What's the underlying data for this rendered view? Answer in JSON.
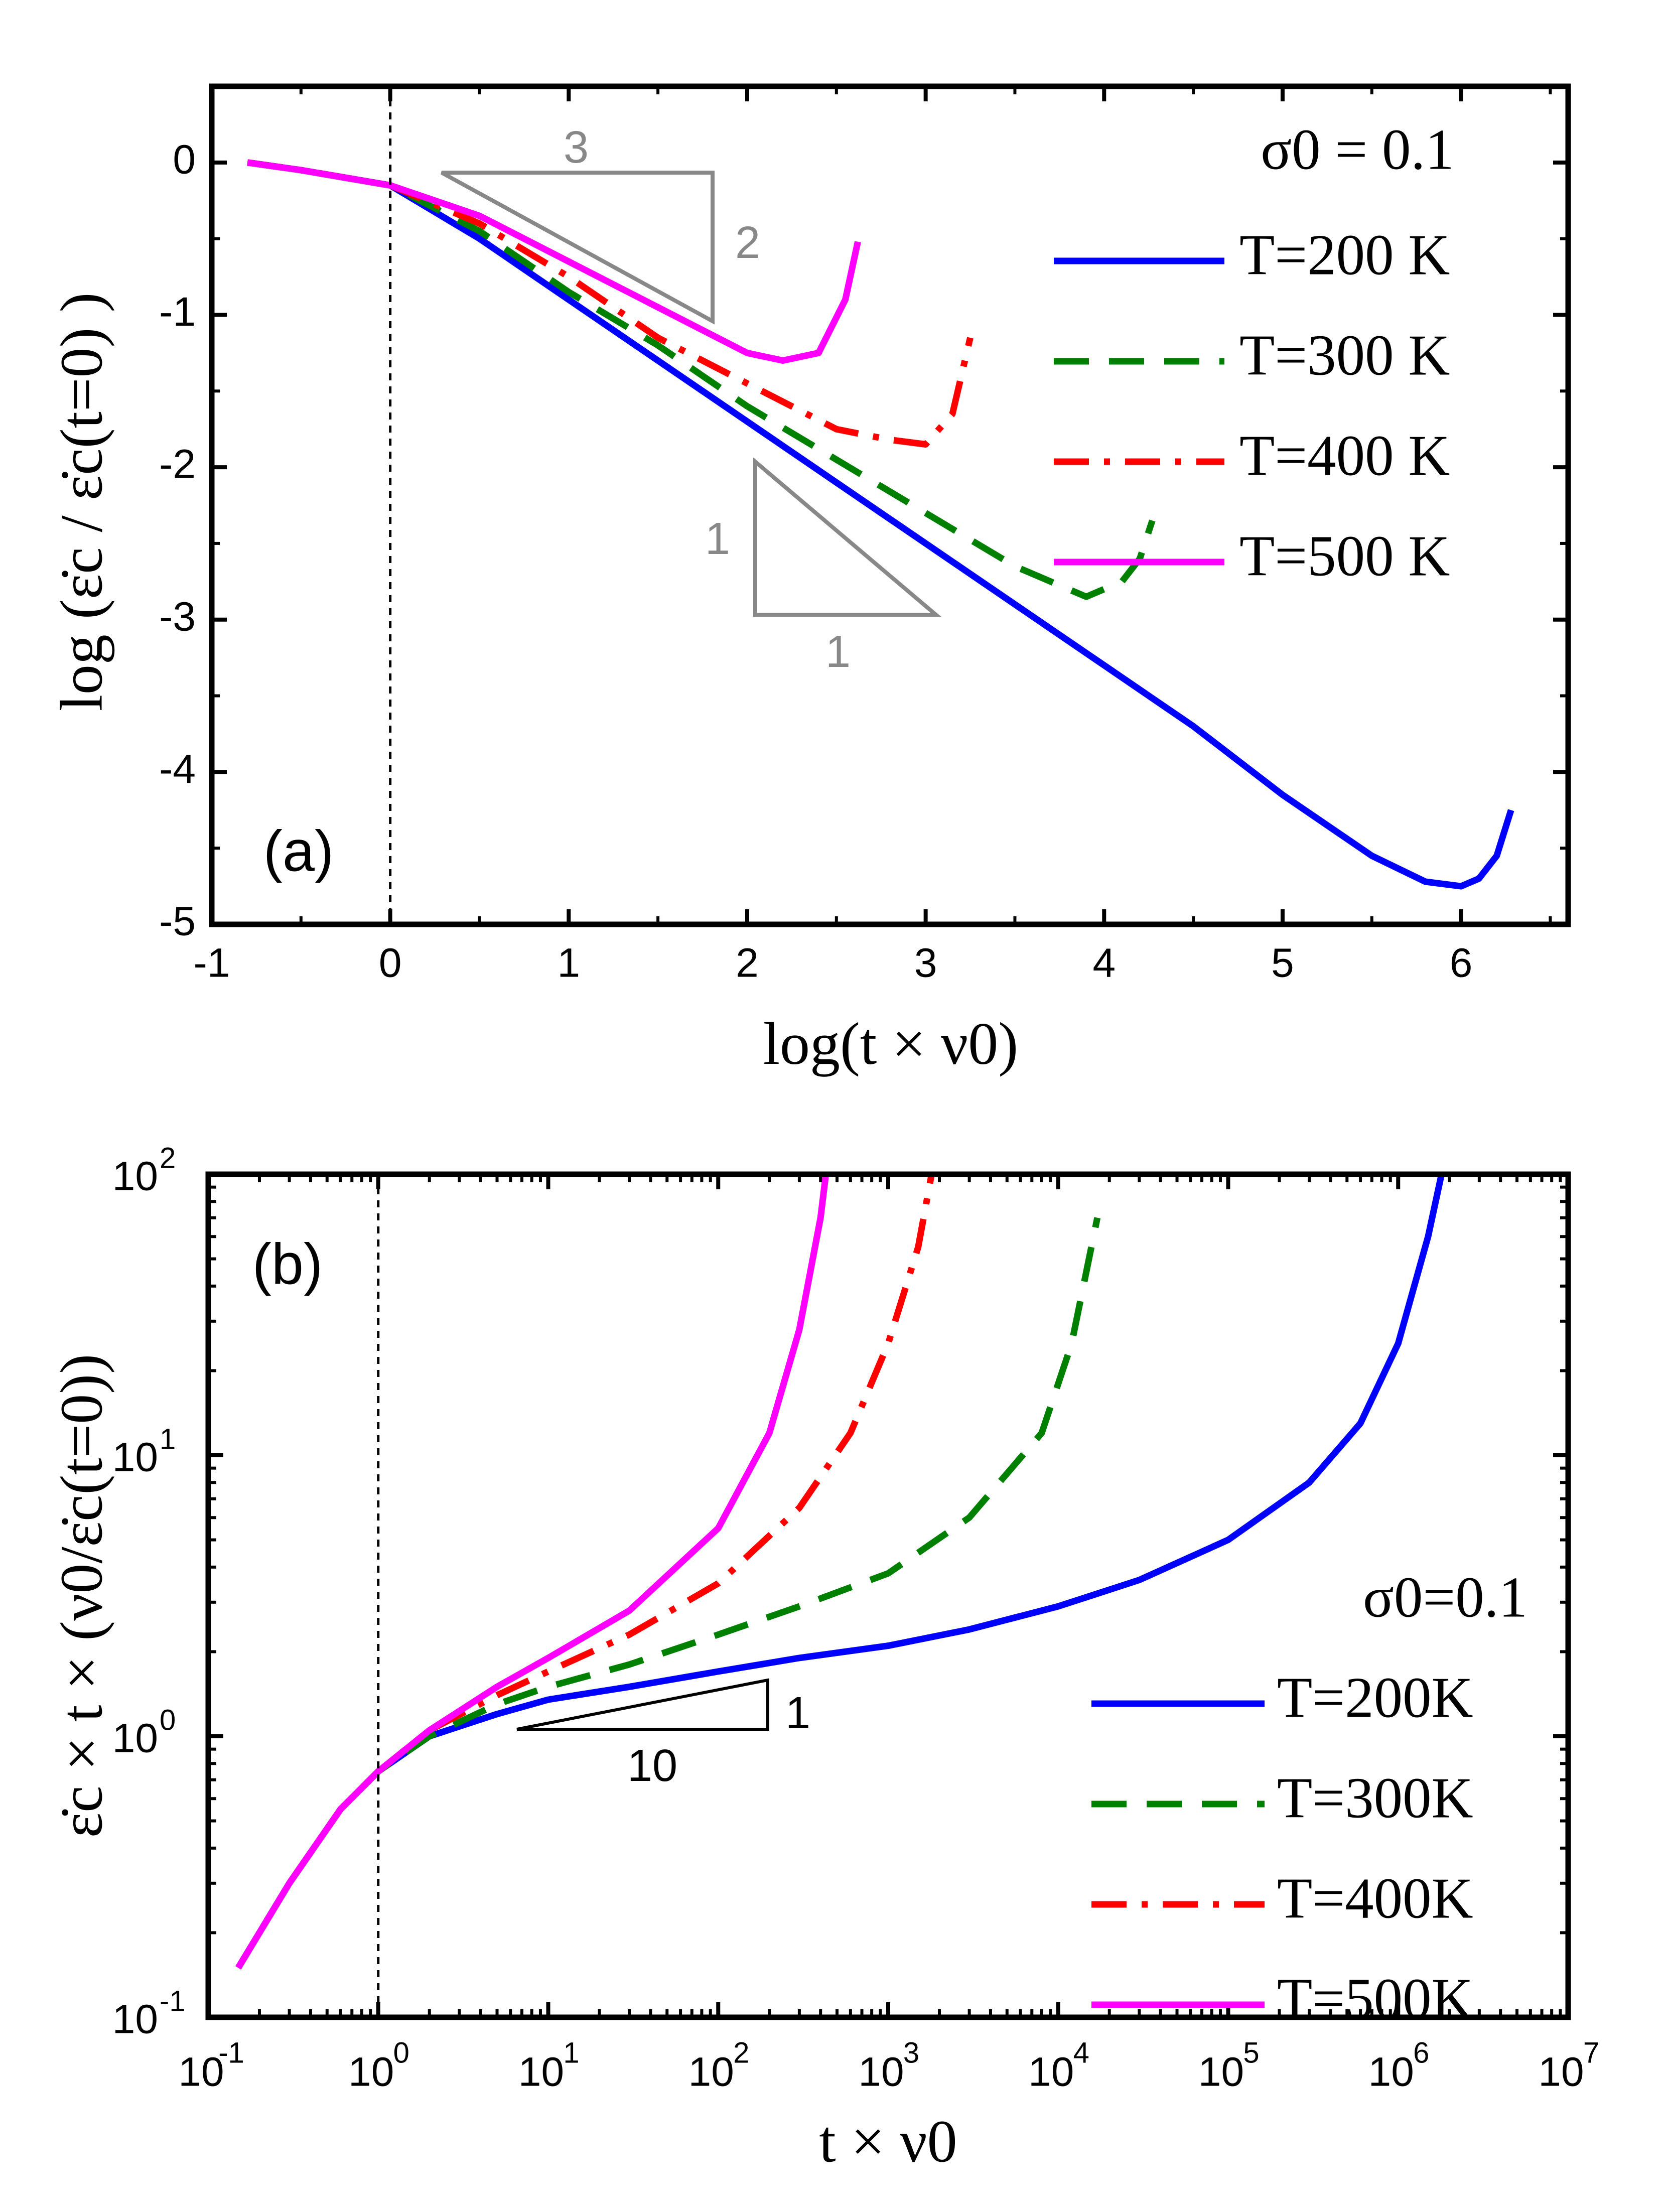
{
  "chart_data": [
    {
      "type": "line",
      "panel_label": "(a)",
      "xlabel": "log(t × ν0)",
      "ylabel": "log (ε̇c / ε̇c(t=0) )",
      "xlim": [
        -1,
        6.6
      ],
      "ylim": [
        -5,
        0.5
      ],
      "xticks": [
        -1,
        0,
        1,
        2,
        3,
        4,
        5,
        6
      ],
      "yticks": [
        0,
        -1,
        -2,
        -3,
        -4,
        -5
      ],
      "vline_x": 0,
      "legend_title": "σ0 = 0.1",
      "legend_position": "top-right",
      "annotations": [
        {
          "label_run": "3",
          "label_rise": "2"
        },
        {
          "label_run": "1",
          "label_rise": "1"
        }
      ],
      "series": [
        {
          "name": "T=200 K",
          "color": "#0000ff",
          "dash": "solid",
          "x": [
            -0.8,
            -0.5,
            0,
            0.5,
            1,
            1.5,
            2,
            2.5,
            3,
            3.5,
            4,
            4.5,
            5,
            5.5,
            5.8,
            6,
            6.1,
            6.2,
            6.28
          ],
          "y": [
            0,
            -0.05,
            -0.15,
            -0.5,
            -0.9,
            -1.3,
            -1.7,
            -2.1,
            -2.5,
            -2.9,
            -3.3,
            -3.7,
            -4.15,
            -4.55,
            -4.72,
            -4.75,
            -4.7,
            -4.55,
            -4.25
          ]
        },
        {
          "name": "T=300 K",
          "color": "#008000",
          "dash": "dash",
          "x": [
            -0.8,
            -0.5,
            0,
            0.5,
            1,
            1.5,
            2,
            2.5,
            3,
            3.5,
            3.9,
            4.1,
            4.2,
            4.27
          ],
          "y": [
            0,
            -0.05,
            -0.15,
            -0.45,
            -0.85,
            -1.2,
            -1.6,
            -1.95,
            -2.3,
            -2.65,
            -2.85,
            -2.75,
            -2.6,
            -2.35
          ]
        },
        {
          "name": "T=400 K",
          "color": "#ff0000",
          "dash": "dashdot",
          "x": [
            -0.8,
            -0.5,
            0,
            0.5,
            1,
            1.5,
            2,
            2.5,
            2.8,
            3.0,
            3.15,
            3.25
          ],
          "y": [
            0,
            -0.05,
            -0.15,
            -0.4,
            -0.75,
            -1.15,
            -1.45,
            -1.75,
            -1.82,
            -1.85,
            -1.65,
            -1.15
          ]
        },
        {
          "name": "T=500 K",
          "color": "#ff00ff",
          "dash": "solid",
          "x": [
            -0.8,
            -0.5,
            0,
            0.5,
            1,
            1.5,
            2,
            2.2,
            2.4,
            2.55,
            2.62
          ],
          "y": [
            0,
            -0.05,
            -0.15,
            -0.35,
            -0.65,
            -0.95,
            -1.25,
            -1.3,
            -1.25,
            -0.9,
            -0.52
          ]
        }
      ]
    },
    {
      "type": "line",
      "panel_label": "(b)",
      "xlabel": "t × ν0",
      "ylabel": "ε̇c × t × (ν0/ε̇c(t=0))",
      "xscale": "log",
      "yscale": "log",
      "xlim": [
        0.1,
        10000000
      ],
      "ylim": [
        0.1,
        100
      ],
      "xticks": [
        0.1,
        1,
        10,
        100,
        1000,
        10000,
        100000,
        1000000,
        10000000
      ],
      "yticks": [
        0.1,
        1,
        10,
        100
      ],
      "vline_x": 1,
      "legend_title": "σ0=0.1",
      "legend_position": "bottom-right",
      "annotations": [
        {
          "label_run": "10",
          "label_rise": "1"
        }
      ],
      "series": [
        {
          "name": "T=200K",
          "color": "#0000ff",
          "dash": "solid",
          "x": [
            0.15,
            0.3,
            0.6,
            1,
            2,
            5,
            10,
            30,
            100,
            300,
            1000,
            3000,
            10000,
            30000,
            100000,
            300000,
            600000,
            1000000,
            1500000,
            1800000
          ],
          "y": [
            0.15,
            0.3,
            0.55,
            0.75,
            1.0,
            1.2,
            1.35,
            1.5,
            1.7,
            1.9,
            2.1,
            2.4,
            2.9,
            3.6,
            5.0,
            8.0,
            13,
            25,
            60,
            100
          ]
        },
        {
          "name": "T=300K",
          "color": "#008000",
          "dash": "dash",
          "x": [
            0.15,
            0.3,
            0.6,
            1,
            2,
            5,
            10,
            30,
            100,
            300,
            1000,
            3000,
            8000,
            12000,
            17000
          ],
          "y": [
            0.15,
            0.3,
            0.55,
            0.75,
            1.0,
            1.3,
            1.5,
            1.8,
            2.3,
            2.9,
            3.8,
            6.0,
            12,
            25,
            70
          ]
        },
        {
          "name": "T=400K",
          "color": "#ff0000",
          "dash": "dashdot",
          "x": [
            0.3,
            0.6,
            1,
            2,
            5,
            10,
            30,
            100,
            300,
            600,
            1000,
            1500,
            1800
          ],
          "y": [
            0.3,
            0.55,
            0.75,
            1.05,
            1.4,
            1.7,
            2.3,
            3.5,
            6.5,
            12,
            25,
            55,
            100
          ]
        },
        {
          "name": "T=500K",
          "color": "#ff00ff",
          "dash": "solid",
          "x": [
            0.15,
            0.3,
            0.6,
            1,
            2,
            5,
            10,
            30,
            100,
            200,
            300,
            400,
            430
          ],
          "y": [
            0.15,
            0.3,
            0.55,
            0.75,
            1.05,
            1.5,
            1.9,
            2.8,
            5.5,
            12,
            28,
            70,
            100
          ]
        }
      ]
    }
  ]
}
